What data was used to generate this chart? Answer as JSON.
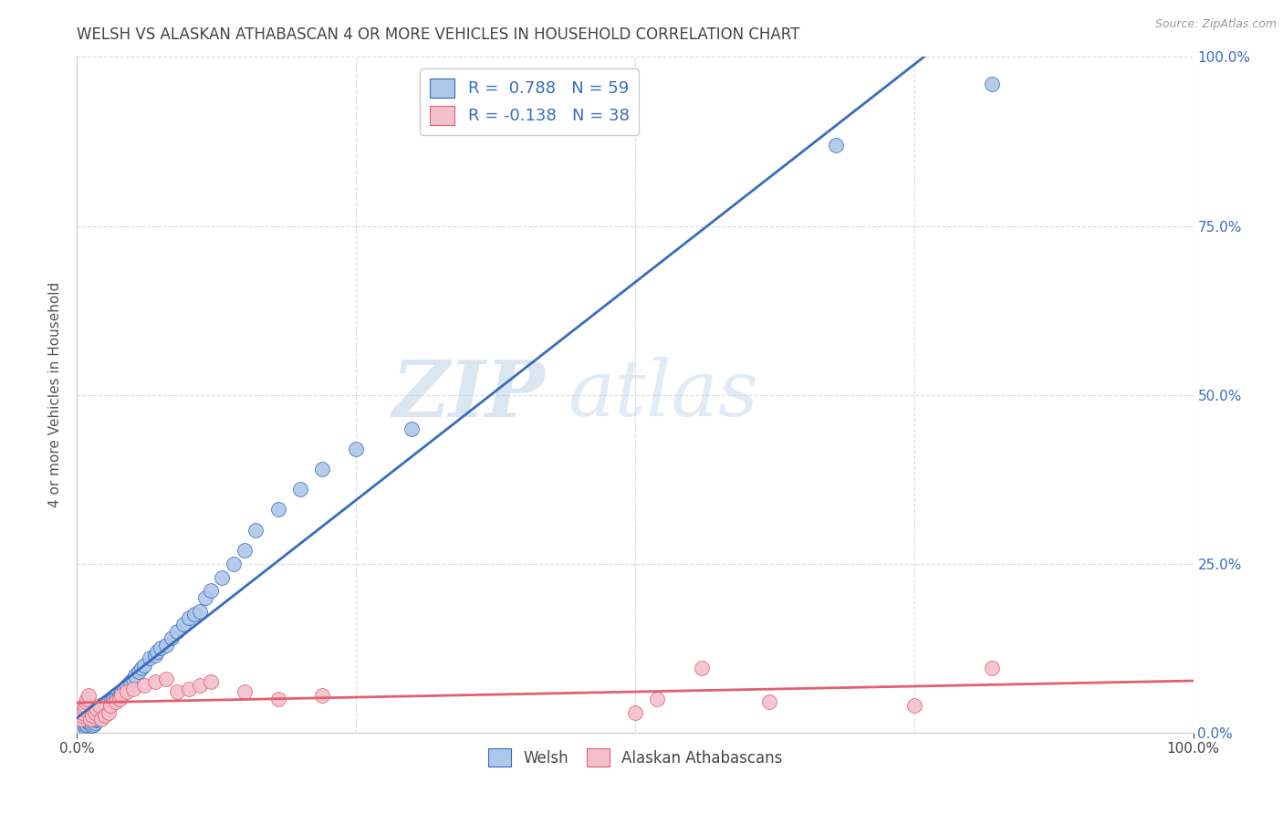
{
  "title": "WELSH VS ALASKAN ATHABASCAN 4 OR MORE VEHICLES IN HOUSEHOLD CORRELATION CHART",
  "source": "Source: ZipAtlas.com",
  "ylabel": "4 or more Vehicles in Household",
  "xlim": [
    0,
    1.0
  ],
  "ylim": [
    0,
    1.0
  ],
  "ytick_positions": [
    0.0,
    0.25,
    0.5,
    0.75,
    1.0
  ],
  "ytick_labels": [
    "0.0%",
    "25.0%",
    "50.0%",
    "75.0%",
    "100.0%"
  ],
  "xtick_positions": [
    0.0,
    1.0
  ],
  "xtick_labels": [
    "0.0%",
    "100.0%"
  ],
  "watermark_zip": "ZIP",
  "watermark_atlas": "atlas",
  "welsh_color": "#adc8e8",
  "atha_color": "#f4bfcc",
  "welsh_line_color": "#3a6bbf",
  "atha_line_color": "#e06070",
  "welsh_x": [
    0.005,
    0.007,
    0.008,
    0.009,
    0.01,
    0.01,
    0.011,
    0.012,
    0.013,
    0.014,
    0.015,
    0.016,
    0.017,
    0.018,
    0.019,
    0.02,
    0.02,
    0.022,
    0.024,
    0.025,
    0.026,
    0.028,
    0.03,
    0.032,
    0.035,
    0.038,
    0.04,
    0.042,
    0.045,
    0.048,
    0.05,
    0.052,
    0.055,
    0.058,
    0.06,
    0.065,
    0.07,
    0.072,
    0.075,
    0.08,
    0.085,
    0.09,
    0.095,
    0.1,
    0.105,
    0.11,
    0.115,
    0.12,
    0.13,
    0.14,
    0.15,
    0.16,
    0.18,
    0.2,
    0.22,
    0.25,
    0.3,
    0.68,
    0.82
  ],
  "welsh_y": [
    0.005,
    0.008,
    0.01,
    0.012,
    0.014,
    0.016,
    0.018,
    0.02,
    0.022,
    0.01,
    0.012,
    0.015,
    0.018,
    0.02,
    0.022,
    0.025,
    0.028,
    0.03,
    0.032,
    0.035,
    0.038,
    0.04,
    0.045,
    0.048,
    0.05,
    0.055,
    0.06,
    0.065,
    0.07,
    0.075,
    0.08,
    0.085,
    0.09,
    0.095,
    0.1,
    0.11,
    0.115,
    0.12,
    0.125,
    0.13,
    0.14,
    0.15,
    0.16,
    0.17,
    0.175,
    0.18,
    0.2,
    0.21,
    0.23,
    0.25,
    0.27,
    0.3,
    0.33,
    0.36,
    0.39,
    0.42,
    0.45,
    0.87,
    0.96
  ],
  "atha_x": [
    0.003,
    0.004,
    0.005,
    0.006,
    0.007,
    0.008,
    0.009,
    0.01,
    0.012,
    0.014,
    0.016,
    0.018,
    0.02,
    0.022,
    0.025,
    0.028,
    0.03,
    0.035,
    0.038,
    0.04,
    0.045,
    0.05,
    0.06,
    0.07,
    0.08,
    0.09,
    0.1,
    0.11,
    0.12,
    0.15,
    0.18,
    0.22,
    0.5,
    0.52,
    0.56,
    0.62,
    0.75,
    0.82
  ],
  "atha_y": [
    0.02,
    0.025,
    0.03,
    0.035,
    0.04,
    0.045,
    0.05,
    0.055,
    0.02,
    0.025,
    0.03,
    0.035,
    0.04,
    0.02,
    0.025,
    0.03,
    0.04,
    0.045,
    0.05,
    0.055,
    0.06,
    0.065,
    0.07,
    0.075,
    0.08,
    0.06,
    0.065,
    0.07,
    0.075,
    0.06,
    0.05,
    0.055,
    0.03,
    0.05,
    0.095,
    0.045,
    0.04,
    0.095
  ],
  "background_color": "#ffffff",
  "grid_color": "#dddddd",
  "title_color": "#444444",
  "axis_label_color": "#555555",
  "tick_color_right": "#3a6bbf",
  "tick_color_bottom": "#444444",
  "legend_text_color": "#3a6bbf"
}
